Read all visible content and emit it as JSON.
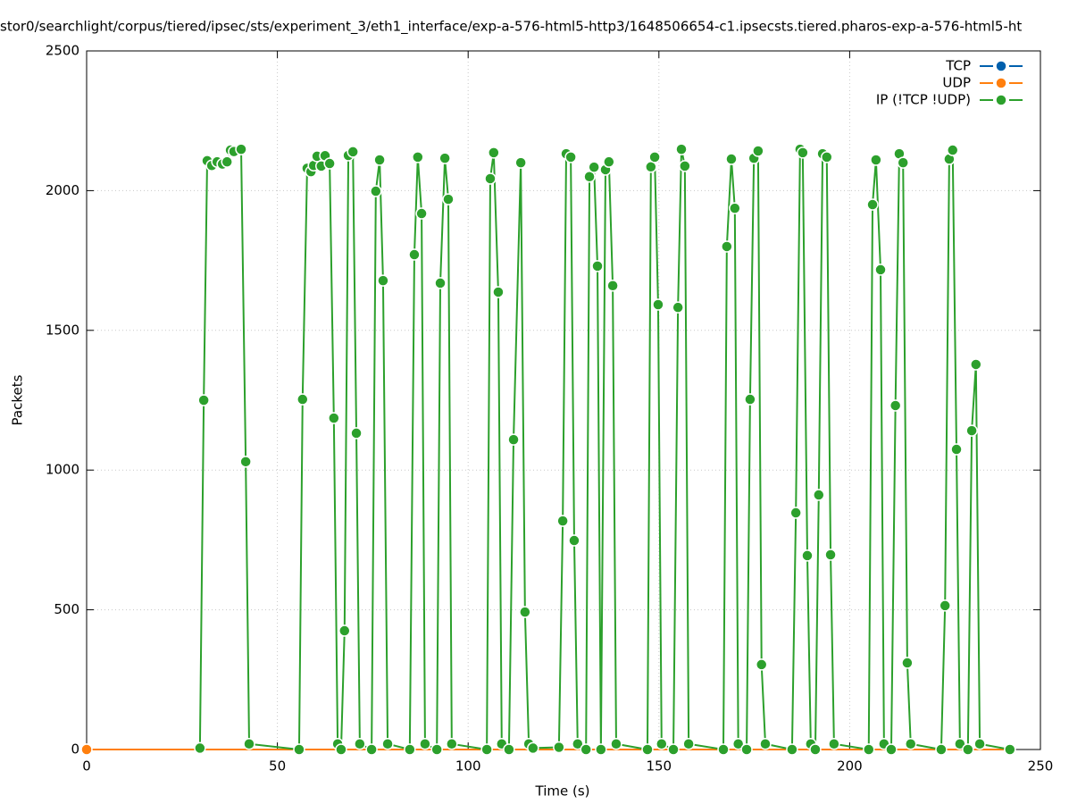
{
  "chart_data": {
    "type": "line",
    "title": "stor0/searchlight/corpus/tiered/ipsec/sts/experiment_3/eth1_interface/exp-a-576-html5-http3/1648506654-c1.ipsecsts.tiered.pharos-exp-a-576-html5-ht",
    "xlabel": "Time (s)",
    "ylabel": "Packets",
    "xlim": [
      0,
      250
    ],
    "xticks": [
      0,
      50,
      100,
      150,
      200,
      250
    ],
    "ylim": [
      0,
      2500
    ],
    "yticks": [
      0,
      500,
      1000,
      1500,
      2000,
      2500
    ],
    "grid": true,
    "legend": "top-right",
    "series": [
      {
        "name": "TCP",
        "color": "#0060ad",
        "x": [
          0,
          242
        ],
        "values": [
          0,
          0
        ]
      },
      {
        "name": "UDP",
        "color": "#ff7f0e",
        "x": [
          0,
          242
        ],
        "values": [
          0,
          0
        ]
      },
      {
        "name": "IP (!TCP  !UDP)",
        "color": "#2ca02c",
        "x": [
          29.7,
          30.7,
          31.6,
          32.8,
          34.2,
          35.6,
          36.8,
          37.7,
          38.6,
          40.5,
          41.7,
          42.6,
          55.7,
          56.6,
          57.8,
          58.8,
          59.5,
          60.4,
          61.5,
          62.5,
          63.7,
          64.8,
          65.8,
          66.7,
          67.6,
          68.6,
          69.8,
          70.7,
          71.6,
          74.7,
          75.8,
          76.8,
          77.7,
          78.9,
          84.7,
          85.9,
          86.8,
          87.8,
          88.7,
          91.8,
          92.7,
          93.9,
          94.8,
          95.7,
          104.9,
          105.8,
          106.7,
          107.9,
          108.8,
          110.7,
          111.9,
          113.8,
          114.9,
          115.9,
          117,
          123.8,
          124.8,
          125.7,
          126.9,
          127.8,
          128.7,
          130.9,
          131.8,
          133,
          133.9,
          134.8,
          136,
          136.9,
          137.9,
          138.8,
          147,
          147.9,
          148.9,
          149.8,
          150.7,
          153.8,
          155,
          155.9,
          156.8,
          157.8,
          166.9,
          167.8,
          169,
          169.9,
          170.8,
          173,
          173.9,
          174.9,
          176,
          176.9,
          177.9,
          184.9,
          185.9,
          187,
          187.7,
          188.9,
          189.8,
          191,
          191.9,
          192.9,
          194,
          195,
          195.9,
          205,
          206,
          206.9,
          208.1,
          209,
          210.9,
          212,
          213,
          214,
          215.1,
          216,
          224,
          225,
          226.1,
          227,
          228,
          228.9,
          231,
          232,
          233.1,
          234.1,
          242
        ],
        "values": [
          5,
          1250,
          2107,
          2090,
          2103,
          2095,
          2103,
          2145,
          2140,
          2148,
          1030,
          20,
          0,
          1253,
          2080,
          2068,
          2090,
          2123,
          2088,
          2125,
          2097,
          1186,
          20,
          0,
          425,
          2126,
          2139,
          1132,
          20,
          0,
          1998,
          2110,
          1678,
          20,
          0,
          1771,
          2120,
          1918,
          20,
          0,
          1669,
          2116,
          1969,
          20,
          0,
          2043,
          2136,
          1637,
          20,
          0,
          1109,
          2100,
          492,
          20,
          5,
          8,
          818,
          2132,
          2120,
          748,
          20,
          0,
          2050,
          2084,
          1730,
          0,
          2075,
          2103,
          1660,
          20,
          0,
          2085,
          2120,
          1592,
          20,
          0,
          1582,
          2148,
          2088,
          20,
          0,
          1800,
          2113,
          1937,
          20,
          0,
          1253,
          2116,
          2142,
          304,
          20,
          0,
          847,
          2148,
          2136,
          694,
          20,
          0,
          911,
          2132,
          2120,
          697,
          20,
          0,
          1950,
          2110,
          1717,
          20,
          0,
          1231,
          2132,
          2100,
          310,
          20,
          0,
          515,
          2113,
          2145,
          1074,
          20,
          0,
          1141,
          1378,
          20,
          0
        ]
      }
    ]
  }
}
